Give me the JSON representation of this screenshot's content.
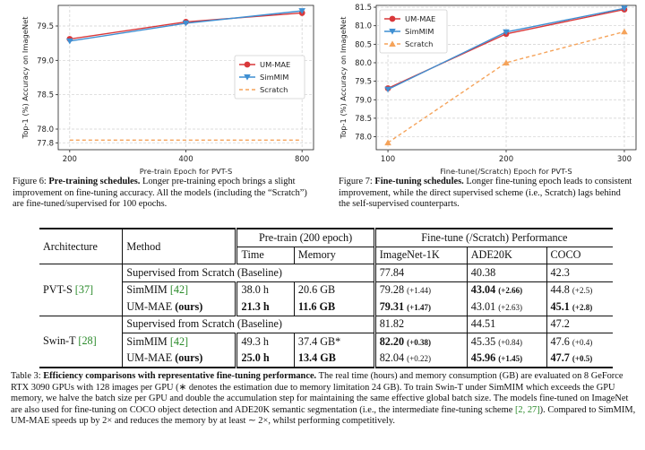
{
  "chart_data": [
    {
      "type": "line",
      "title": "",
      "xlabel": "Pre-train Epoch for PVT-S",
      "ylabel": "Top-1 (%) Accuracy on ImageNet",
      "categories": [
        "200",
        "400",
        "800"
      ],
      "yticks": [
        "77.8",
        "78.0",
        "78.5",
        "79.0",
        "79.5"
      ],
      "ylim": [
        77.7,
        79.8
      ],
      "grid": true,
      "legend_position": "right",
      "series": [
        {
          "name": "UM-MAE",
          "values": [
            79.31,
            79.56,
            79.69
          ],
          "color": "#d9383a",
          "marker": "circle"
        },
        {
          "name": "SimMIM",
          "values": [
            79.28,
            79.54,
            79.72
          ],
          "color": "#3f8fd2",
          "marker": "triangle-down"
        },
        {
          "name": "Scratch",
          "values": [
            77.84,
            77.84,
            77.84
          ],
          "color": "#f5a35a",
          "marker": "none",
          "dashed": true
        }
      ]
    },
    {
      "type": "line",
      "title": "",
      "xlabel": "Fine-tune(/Scratch) Epoch for PVT-S",
      "ylabel": "Top-1 (%) Accuracy on ImageNet",
      "categories": [
        "100",
        "200",
        "300"
      ],
      "yticks": [
        "78.0",
        "78.5",
        "79.0",
        "79.5",
        "80.0",
        "80.5",
        "81.0",
        "81.5"
      ],
      "ylim": [
        77.65,
        81.55
      ],
      "grid": true,
      "legend_position": "top-left",
      "series": [
        {
          "name": "UM-MAE",
          "values": [
            79.31,
            80.78,
            81.44
          ],
          "color": "#d9383a",
          "marker": "circle"
        },
        {
          "name": "SimMIM",
          "values": [
            79.28,
            80.83,
            81.47
          ],
          "color": "#3f8fd2",
          "marker": "triangle-down"
        },
        {
          "name": "Scratch",
          "values": [
            77.84,
            80.0,
            80.84
          ],
          "color": "#f5a35a",
          "marker": "triangle-up",
          "dashed": true
        }
      ]
    }
  ],
  "figure6": {
    "label": "Figure 6:",
    "title": "Pre-training schedules.",
    "text": "Longer pre-training epoch brings a slight improvement on fine-tuning accuracy.  All the models (including the “Scratch”) are fine-tuned/supervised for 100 epochs."
  },
  "figure7": {
    "label": "Figure 7:",
    "title": "Fine-tuning schedules.",
    "text": "Longer fine-tuning epoch leads to consistent improvement, while the direct supervised scheme (i.e., Scratch) lags behind the self-supervised counterparts."
  },
  "table": {
    "headers": {
      "architecture": "Architecture",
      "method": "Method",
      "pretrain": "Pre-train  (200 epoch)",
      "finetune": "Fine-tune (/Scratch) Performance",
      "time": "Time",
      "memory": "Memory",
      "imagenet": "ImageNet-1K",
      "ade": "ADE20K",
      "coco": "COCO"
    },
    "pvt": {
      "arch": "PVT-S",
      "arch_ref": "[37]",
      "baseline": "Supervised from Scratch (Baseline)",
      "baseline_imagenet": "77.84",
      "baseline_ade": "40.38",
      "baseline_coco": "42.3",
      "simmim": "SimMIM",
      "simmim_ref": "[42]",
      "simmim_time": "38.0 h",
      "simmim_mem": "20.6 GB",
      "simmim_imagenet": "79.28",
      "simmim_imagenet_d": "(+1.44)",
      "simmim_ade": "43.04",
      "simmim_ade_d": "(+2.66)",
      "simmim_coco": "44.8",
      "simmim_coco_d": "(+2.5)",
      "ummae": "UM-MAE",
      "ummae_ours": "(ours)",
      "ummae_time": "21.3 h",
      "ummae_mem": "11.6 GB",
      "ummae_imagenet": "79.31",
      "ummae_imagenet_d": "(+1.47)",
      "ummae_ade": "43.01",
      "ummae_ade_d": "(+2.63)",
      "ummae_coco": "45.1",
      "ummae_coco_d": "(+2.8)"
    },
    "swin": {
      "arch": "Swin-T",
      "arch_ref": "[28]",
      "baseline": "Supervised from Scratch (Baseline)",
      "baseline_imagenet": "81.82",
      "baseline_ade": "44.51",
      "baseline_coco": "47.2",
      "simmim": "SimMIM",
      "simmim_ref": "[42]",
      "simmim_time": "49.3 h",
      "simmim_mem": "37.4 GB*",
      "simmim_imagenet": "82.20",
      "simmim_imagenet_d": "(+0.38)",
      "simmim_ade": "45.35",
      "simmim_ade_d": "(+0.84)",
      "simmim_coco": "47.6",
      "simmim_coco_d": "(+0.4)",
      "ummae": "UM-MAE",
      "ummae_ours": "(ours)",
      "ummae_time": "25.0 h",
      "ummae_mem": "13.4 GB",
      "ummae_imagenet": "82.04",
      "ummae_imagenet_d": "(+0.22)",
      "ummae_ade": "45.96",
      "ummae_ade_d": "(+1.45)",
      "ummae_coco": "47.7",
      "ummae_coco_d": "(+0.5)"
    }
  },
  "table3": {
    "label": "Table 3:",
    "title": "Efficiency comparisons with representative fine-tuning performance.",
    "text1": "The real time (hours) and memory consumption (GB) are evaluated on 8 GeForce RTX 3090 GPUs with 128 images per GPU (∗ denotes the estimation due to memory limitation 24 GB). To train Swin-T under SimMIM which exceeds the GPU memory, we halve the batch size per GPU and double the accumulation step for maintaining the same effective global batch size. The models fine-tuned on ImageNet are also used for fine-tuning on COCO object detection and ADE20K semantic segmentation (i.e., the intermediate fine-tuning scheme",
    "refs": "[2, 27]",
    "text2": "). Compared to SimMIM, UM-MAE speeds up by 2× and reduces the memory by at least ∼ 2×, whilst performing competitively."
  }
}
